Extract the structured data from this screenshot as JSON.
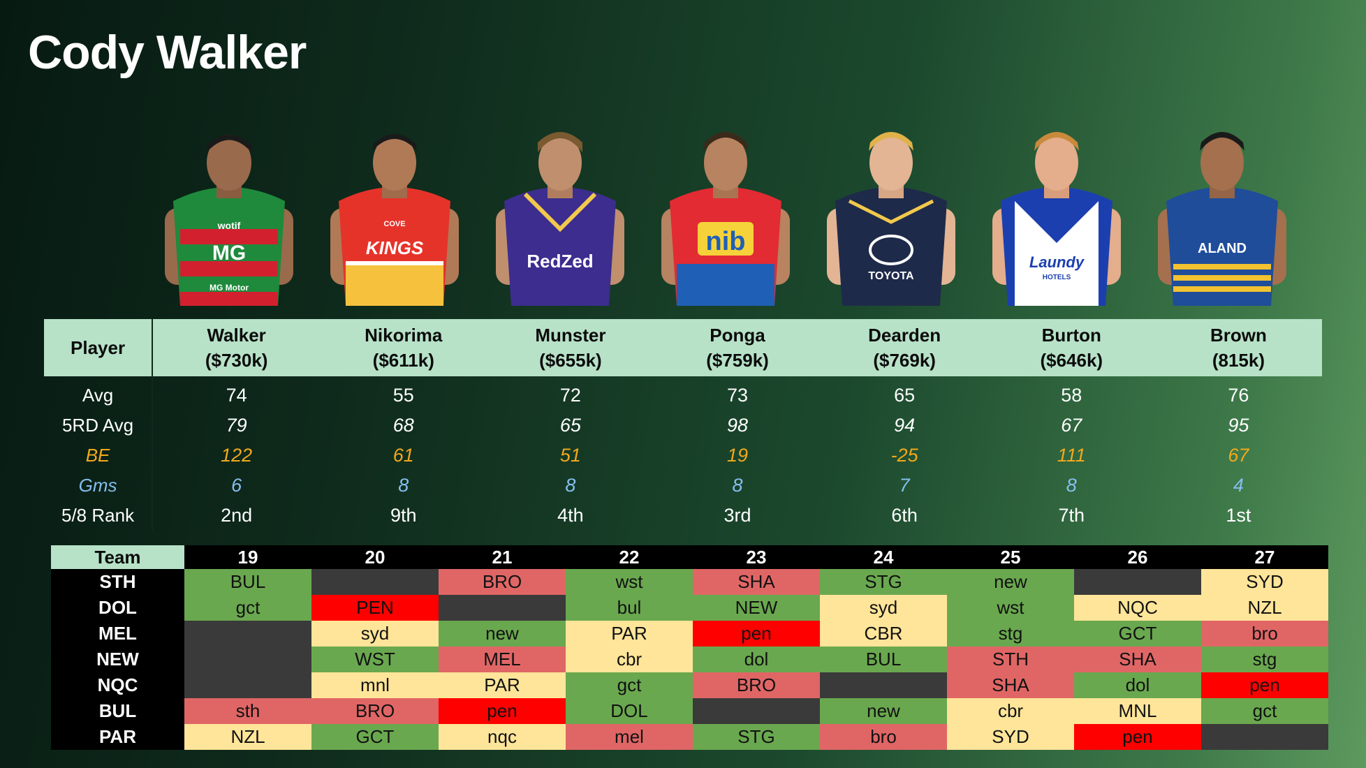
{
  "title": "Cody Walker",
  "players": [
    {
      "key": "walker",
      "jersey_text": "wotif",
      "jersey_text2": "MG",
      "jersey_text3": "MG Motor",
      "colors": [
        "#1f8a3c",
        "#d2202f"
      ]
    },
    {
      "key": "nikorima",
      "jersey_text": "KINGS",
      "jersey_text2": "COVE",
      "colors": [
        "#e6332a",
        "#f6c23e"
      ]
    },
    {
      "key": "munster",
      "jersey_text": "RedZed",
      "colors": [
        "#3c2d8f",
        "#f2c94c"
      ]
    },
    {
      "key": "ponga",
      "jersey_text": "nib",
      "colors": [
        "#e32b33",
        "#1f5fb5"
      ]
    },
    {
      "key": "dearden",
      "jersey_text": "TOYOTA",
      "colors": [
        "#1e2a4a",
        "#f2c94c"
      ]
    },
    {
      "key": "burton",
      "jersey_text": "Laundy",
      "jersey_text2": "HOTELS",
      "colors": [
        "#1c3fb0",
        "#ffffff"
      ]
    },
    {
      "key": "brown",
      "jersey_text": "ALAND",
      "colors": [
        "#1f4d9a",
        "#f2c230"
      ]
    }
  ],
  "stats": {
    "row_header": "Player",
    "columns": [
      {
        "name": "Walker",
        "price": "($730k)"
      },
      {
        "name": "Nikorima",
        "price": "($611k)"
      },
      {
        "name": "Munster",
        "price": "($655k)"
      },
      {
        "name": "Ponga",
        "price": "($759k)"
      },
      {
        "name": "Dearden",
        "price": "($769k)"
      },
      {
        "name": "Burton",
        "price": "($646k)"
      },
      {
        "name": "Brown",
        "price": "(815k)"
      }
    ],
    "rows": [
      {
        "label": "Avg",
        "values": [
          "74",
          "55",
          "72",
          "73",
          "65",
          "58",
          "76"
        ]
      },
      {
        "label": "5RD Avg",
        "values": [
          "79",
          "68",
          "65",
          "98",
          "94",
          "67",
          "95"
        ]
      },
      {
        "label": "BE",
        "values": [
          "122",
          "61",
          "51",
          "19",
          "-25",
          "111",
          "67"
        ]
      },
      {
        "label": "Gms",
        "values": [
          "6",
          "8",
          "8",
          "8",
          "7",
          "8",
          "4"
        ]
      },
      {
        "label": "5/8 Rank",
        "values": [
          "2nd",
          "9th",
          "4th",
          "3rd",
          "6th",
          "7th",
          "1st"
        ]
      }
    ]
  },
  "fixtures": {
    "header": "Team",
    "rounds": [
      "19",
      "20",
      "21",
      "22",
      "23",
      "24",
      "25",
      "26",
      "27"
    ],
    "teams": [
      {
        "code": "STH",
        "cells": [
          {
            "t": "BUL",
            "c": "green"
          },
          {
            "t": "",
            "c": "dark"
          },
          {
            "t": "BRO",
            "c": "red"
          },
          {
            "t": "wst",
            "c": "green"
          },
          {
            "t": "SHA",
            "c": "red"
          },
          {
            "t": "STG",
            "c": "green"
          },
          {
            "t": "new",
            "c": "green"
          },
          {
            "t": "",
            "c": "dark"
          },
          {
            "t": "SYD",
            "c": "yellow"
          }
        ]
      },
      {
        "code": "DOL",
        "cells": [
          {
            "t": "gct",
            "c": "green"
          },
          {
            "t": "PEN",
            "c": "bright"
          },
          {
            "t": "",
            "c": "dark"
          },
          {
            "t": "bul",
            "c": "green"
          },
          {
            "t": "NEW",
            "c": "green"
          },
          {
            "t": "syd",
            "c": "yellow"
          },
          {
            "t": "wst",
            "c": "green"
          },
          {
            "t": "NQC",
            "c": "yellow"
          },
          {
            "t": "NZL",
            "c": "yellow"
          }
        ]
      },
      {
        "code": "MEL",
        "cells": [
          {
            "t": "",
            "c": "dark"
          },
          {
            "t": "syd",
            "c": "yellow"
          },
          {
            "t": "new",
            "c": "green"
          },
          {
            "t": "PAR",
            "c": "yellow"
          },
          {
            "t": "pen",
            "c": "bright"
          },
          {
            "t": "CBR",
            "c": "yellow"
          },
          {
            "t": "stg",
            "c": "green"
          },
          {
            "t": "GCT",
            "c": "green"
          },
          {
            "t": "bro",
            "c": "red"
          }
        ]
      },
      {
        "code": "NEW",
        "cells": [
          {
            "t": "",
            "c": "dark"
          },
          {
            "t": "WST",
            "c": "green"
          },
          {
            "t": "MEL",
            "c": "red"
          },
          {
            "t": "cbr",
            "c": "yellow"
          },
          {
            "t": "dol",
            "c": "green"
          },
          {
            "t": "BUL",
            "c": "green"
          },
          {
            "t": "STH",
            "c": "red"
          },
          {
            "t": "SHA",
            "c": "red"
          },
          {
            "t": "stg",
            "c": "green"
          }
        ]
      },
      {
        "code": "NQC",
        "cells": [
          {
            "t": "",
            "c": "dark"
          },
          {
            "t": "mnl",
            "c": "yellow"
          },
          {
            "t": "PAR",
            "c": "yellow"
          },
          {
            "t": "gct",
            "c": "green"
          },
          {
            "t": "BRO",
            "c": "red"
          },
          {
            "t": "",
            "c": "dark"
          },
          {
            "t": "SHA",
            "c": "red"
          },
          {
            "t": "dol",
            "c": "green"
          },
          {
            "t": "pen",
            "c": "bright"
          }
        ]
      },
      {
        "code": "BUL",
        "cells": [
          {
            "t": "sth",
            "c": "red"
          },
          {
            "t": "BRO",
            "c": "red"
          },
          {
            "t": "pen",
            "c": "bright"
          },
          {
            "t": "DOL",
            "c": "green"
          },
          {
            "t": "",
            "c": "dark"
          },
          {
            "t": "new",
            "c": "green"
          },
          {
            "t": "cbr",
            "c": "yellow"
          },
          {
            "t": "MNL",
            "c": "yellow"
          },
          {
            "t": "gct",
            "c": "green"
          }
        ]
      },
      {
        "code": "PAR",
        "cells": [
          {
            "t": "NZL",
            "c": "yellow"
          },
          {
            "t": "GCT",
            "c": "green"
          },
          {
            "t": "nqc",
            "c": "yellow"
          },
          {
            "t": "mel",
            "c": "red"
          },
          {
            "t": "STG",
            "c": "green"
          },
          {
            "t": "bro",
            "c": "red"
          },
          {
            "t": "SYD",
            "c": "yellow"
          },
          {
            "t": "pen",
            "c": "bright"
          },
          {
            "t": "",
            "c": "dark"
          }
        ]
      }
    ]
  }
}
